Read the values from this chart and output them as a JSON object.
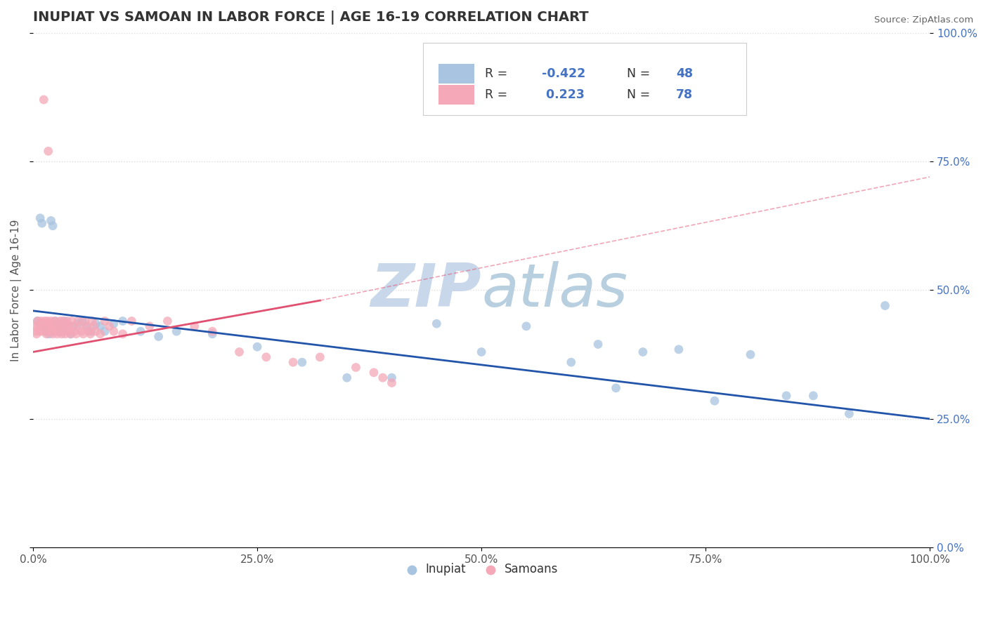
{
  "title": "INUPIAT VS SAMOAN IN LABOR FORCE | AGE 16-19 CORRELATION CHART",
  "source": "Source: ZipAtlas.com",
  "ylabel": "In Labor Force | Age 16-19",
  "inupiat_R": -0.422,
  "inupiat_N": 48,
  "samoan_R": 0.223,
  "samoan_N": 78,
  "inupiat_color": "#a8c4e0",
  "samoan_color": "#f4a8b8",
  "inupiat_line_color": "#2255aa",
  "samoan_line_color": "#e05070",
  "background_color": "#ffffff",
  "grid_color": "#dddddd",
  "watermark_color": "#c8d8ea"
}
